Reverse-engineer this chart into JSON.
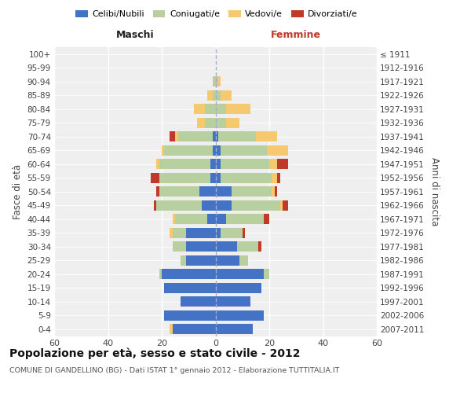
{
  "age_groups": [
    "0-4",
    "5-9",
    "10-14",
    "15-19",
    "20-24",
    "25-29",
    "30-34",
    "35-39",
    "40-44",
    "45-49",
    "50-54",
    "55-59",
    "60-64",
    "65-69",
    "70-74",
    "75-79",
    "80-84",
    "85-89",
    "90-94",
    "95-99",
    "100+"
  ],
  "birth_years": [
    "2007-2011",
    "2002-2006",
    "1997-2001",
    "1992-1996",
    "1987-1991",
    "1982-1986",
    "1977-1981",
    "1972-1976",
    "1967-1971",
    "1962-1966",
    "1957-1961",
    "1952-1956",
    "1947-1951",
    "1942-1946",
    "1937-1941",
    "1932-1936",
    "1927-1931",
    "1922-1926",
    "1917-1921",
    "1912-1916",
    "≤ 1911"
  ],
  "maschi": {
    "celibi": [
      16,
      19,
      13,
      19,
      20,
      11,
      11,
      11,
      3,
      5,
      6,
      2,
      2,
      1,
      1,
      0,
      0,
      0,
      0,
      0,
      0
    ],
    "coniugati": [
      0,
      0,
      0,
      0,
      1,
      2,
      5,
      5,
      12,
      17,
      15,
      19,
      19,
      18,
      13,
      4,
      4,
      1,
      1,
      0,
      0
    ],
    "vedovi": [
      1,
      0,
      0,
      0,
      0,
      0,
      0,
      1,
      1,
      0,
      0,
      0,
      1,
      1,
      1,
      3,
      4,
      2,
      0,
      0,
      0
    ],
    "divorziati": [
      0,
      0,
      0,
      0,
      0,
      0,
      0,
      0,
      0,
      1,
      1,
      3,
      0,
      0,
      2,
      0,
      0,
      0,
      0,
      0,
      0
    ]
  },
  "femmine": {
    "nubili": [
      14,
      18,
      13,
      17,
      18,
      9,
      8,
      2,
      4,
      6,
      6,
      2,
      2,
      2,
      1,
      0,
      0,
      0,
      0,
      0,
      0
    ],
    "coniugate": [
      0,
      0,
      0,
      0,
      2,
      3,
      8,
      8,
      14,
      18,
      15,
      19,
      18,
      17,
      14,
      4,
      4,
      2,
      1,
      0,
      0
    ],
    "vedove": [
      0,
      0,
      0,
      0,
      0,
      0,
      0,
      0,
      0,
      1,
      1,
      2,
      3,
      8,
      8,
      5,
      9,
      4,
      1,
      0,
      0
    ],
    "divorziate": [
      0,
      0,
      0,
      0,
      0,
      0,
      1,
      1,
      2,
      2,
      1,
      1,
      4,
      0,
      0,
      0,
      0,
      0,
      0,
      0,
      0
    ]
  },
  "colors": {
    "celibi": "#4472c4",
    "coniugati": "#b8cfa0",
    "vedovi": "#f5c96e",
    "divorziati": "#c0392b"
  },
  "xlim": 60,
  "title": "Popolazione per età, sesso e stato civile - 2012",
  "subtitle": "COMUNE DI GANDELLINO (BG) - Dati ISTAT 1° gennaio 2012 - Elaborazione TUTTITALIA.IT",
  "ylabel_left": "Fasce di età",
  "ylabel_right": "Anni di nascita",
  "label_maschi": "Maschi",
  "label_femmine": "Femmine",
  "legend_labels": [
    "Celibi/Nubili",
    "Coniugati/e",
    "Vedovi/e",
    "Divorziati/e"
  ],
  "bg_axes": "#efefef",
  "bg_fig": "#ffffff",
  "grid_color": "#ffffff"
}
